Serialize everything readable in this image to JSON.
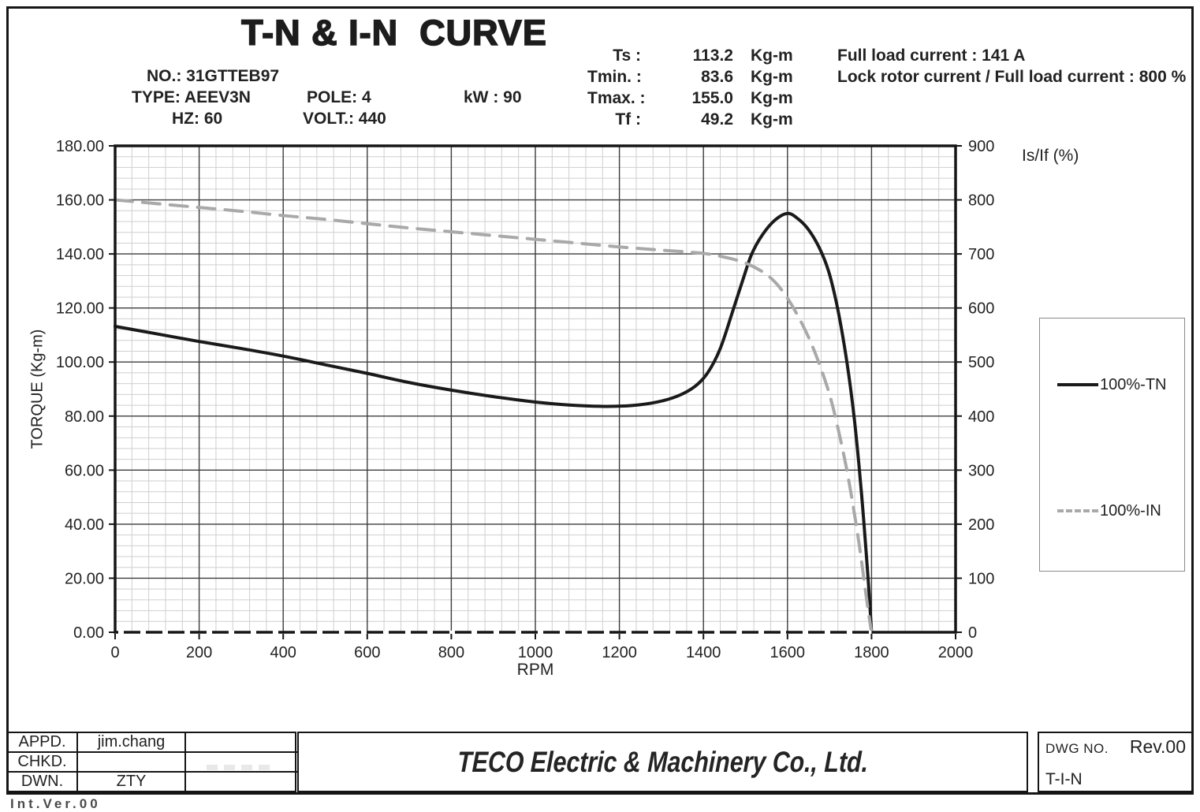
{
  "header": {
    "title": "T-N & I-N  CURVE",
    "specs": {
      "no_label": "NO.:",
      "no_value": "31GTTEB97",
      "type_label": "TYPE:",
      "type_value": "AEEV3N",
      "hz_label": "HZ:",
      "hz_value": "60",
      "pole_label": "POLE:",
      "pole_value": "4",
      "volt_label": "VOLT.:",
      "volt_value": "440",
      "kw_label": "kW :",
      "kw_value": "90"
    },
    "torque_rows": [
      {
        "label": "Ts :",
        "value": "113.2",
        "unit": "Kg-m",
        "note": "Full load current : 141 A"
      },
      {
        "label": "Tmin. :",
        "value": "83.6",
        "unit": "Kg-m",
        "note": "Lock rotor current / Full load current : 800 %"
      },
      {
        "label": "Tmax. :",
        "value": "155.0",
        "unit": "Kg-m",
        "note": ""
      },
      {
        "label": "Tf :",
        "value": "49.2",
        "unit": "Kg-m",
        "note": ""
      }
    ]
  },
  "chart_data": {
    "type": "line",
    "title": "T-N & I-N CURVE",
    "xlabel": "RPM",
    "ylabel_left": "TORQUE (Kg-m)",
    "ylabel_right": "Is/If (%)",
    "x_range": [
      0,
      2000
    ],
    "y_left_range": [
      0,
      180
    ],
    "y_right_range": [
      0,
      900
    ],
    "x_major_step": 200,
    "x_minor_step": 40,
    "y_left_major_step": 20,
    "y_left_minor_step": 4,
    "grid": true,
    "legend_position": "right",
    "x_ticks": [
      "0",
      "200",
      "400",
      "600",
      "800",
      "1000",
      "1200",
      "1400",
      "1600",
      "1800",
      "2000"
    ],
    "y_left_ticks": [
      "0.00",
      "20.00",
      "40.00",
      "60.00",
      "80.00",
      "100.00",
      "120.00",
      "140.00",
      "160.00",
      "180.00"
    ],
    "y_right_ticks": [
      "0",
      "100",
      "200",
      "300",
      "400",
      "500",
      "600",
      "700",
      "800",
      "900"
    ],
    "key_values": {
      "Ts": 113.2,
      "Tmin": 83.6,
      "Tmax": 155.0,
      "Tf": 49.2,
      "full_load_current_A": 141,
      "lock_rotor_over_full_load_pct": 800
    },
    "series": [
      {
        "name": "100%-TN",
        "axis": "left",
        "line": "solid",
        "color": "#1a1a1a",
        "points": [
          [
            0,
            113.2
          ],
          [
            100,
            110.4
          ],
          [
            200,
            107.6
          ],
          [
            300,
            105.0
          ],
          [
            400,
            102.2
          ],
          [
            500,
            99.0
          ],
          [
            600,
            95.8
          ],
          [
            700,
            92.4
          ],
          [
            800,
            89.6
          ],
          [
            900,
            87.2
          ],
          [
            1000,
            85.2
          ],
          [
            1080,
            84.1
          ],
          [
            1160,
            83.6
          ],
          [
            1230,
            83.9
          ],
          [
            1290,
            85.2
          ],
          [
            1340,
            87.5
          ],
          [
            1380,
            91.0
          ],
          [
            1410,
            96.0
          ],
          [
            1440,
            105.0
          ],
          [
            1470,
            119.0
          ],
          [
            1495,
            131.0
          ],
          [
            1515,
            140.0
          ],
          [
            1540,
            147.0
          ],
          [
            1570,
            152.5
          ],
          [
            1600,
            155.0
          ],
          [
            1625,
            153.0
          ],
          [
            1650,
            149.0
          ],
          [
            1675,
            142.5
          ],
          [
            1697,
            134.0
          ],
          [
            1715,
            123.0
          ],
          [
            1731,
            110.0
          ],
          [
            1746,
            95.0
          ],
          [
            1759,
            79.0
          ],
          [
            1770,
            62.0
          ],
          [
            1779,
            46.0
          ],
          [
            1787,
            30.0
          ],
          [
            1794,
            15.0
          ],
          [
            1800,
            0
          ]
        ]
      },
      {
        "name": "100%-IN",
        "axis": "right",
        "line": "dashed",
        "color": "#a9a9a9",
        "points": [
          [
            0,
            800
          ],
          [
            100,
            793
          ],
          [
            200,
            786
          ],
          [
            300,
            779
          ],
          [
            400,
            771
          ],
          [
            500,
            764
          ],
          [
            600,
            756
          ],
          [
            700,
            748
          ],
          [
            800,
            741
          ],
          [
            900,
            734
          ],
          [
            1000,
            727
          ],
          [
            1100,
            720
          ],
          [
            1200,
            713
          ],
          [
            1300,
            707
          ],
          [
            1400,
            701
          ],
          [
            1450,
            694
          ],
          [
            1490,
            686
          ],
          [
            1520,
            676
          ],
          [
            1550,
            662
          ],
          [
            1575,
            644
          ],
          [
            1600,
            618
          ],
          [
            1625,
            585
          ],
          [
            1650,
            546
          ],
          [
            1675,
            498
          ],
          [
            1700,
            440
          ],
          [
            1720,
            378
          ],
          [
            1740,
            305
          ],
          [
            1757,
            230
          ],
          [
            1772,
            155
          ],
          [
            1785,
            80
          ],
          [
            1794,
            30
          ],
          [
            1800,
            0
          ]
        ]
      }
    ]
  },
  "footer": {
    "approval_rows": [
      {
        "label": "APPD.",
        "name": "jim.chang",
        "extra": ""
      },
      {
        "label": "CHKD.",
        "name": "",
        "extra": ""
      },
      {
        "label": "DWN.",
        "name": "ZTY",
        "extra": ""
      }
    ],
    "company": "TECO Electric & Machinery Co., Ltd.",
    "dwg_label": "DWG NO.",
    "revision": "Rev.00",
    "dwg_number": "T-I-N",
    "cutoff_note": "Int.Ver.00"
  }
}
